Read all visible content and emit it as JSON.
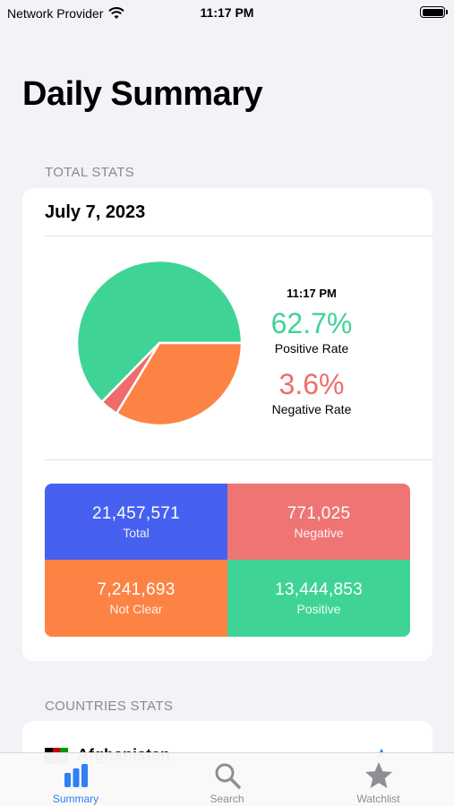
{
  "status_bar": {
    "carrier": "Network Provider",
    "time": "11:17 PM"
  },
  "title": "Daily Summary",
  "total_stats": {
    "header": "TOTAL STATS",
    "date": "July 7, 2023",
    "time": "11:17 PM",
    "positive_rate": "62.7%",
    "positive_rate_label": "Positive Rate",
    "negative_rate": "3.6%",
    "negative_rate_label": "Negative Rate",
    "pie": [
      {
        "name": "Positive",
        "value": 62.7,
        "color": "#3fd496"
      },
      {
        "name": "Negative",
        "value": 3.6,
        "color": "#ef6c6c"
      },
      {
        "name": "Not Clear",
        "value": 33.7,
        "color": "#fd8344"
      }
    ],
    "cells": {
      "total": {
        "value": "21,457,571",
        "label": "Total",
        "color": "#4660f0"
      },
      "negative": {
        "value": "771,025",
        "label": "Negative",
        "color": "#ef7474"
      },
      "not_clear": {
        "value": "7,241,693",
        "label": "Not Clear",
        "color": "#fd8344"
      },
      "positive": {
        "value": "13,444,853",
        "label": "Positive",
        "color": "#3fd496"
      }
    }
  },
  "countries_stats": {
    "header": "COUNTRIES STATS",
    "first_country": "Afghanistan"
  },
  "tabs": [
    {
      "label": "Summary",
      "icon": "bar-chart-icon",
      "active": true
    },
    {
      "label": "Search",
      "icon": "magnifying-glass-icon",
      "active": false
    },
    {
      "label": "Watchlist",
      "icon": "star-icon",
      "active": false
    }
  ],
  "colors": {
    "accent": "#2f7ff5",
    "background": "#f2f2f7"
  }
}
